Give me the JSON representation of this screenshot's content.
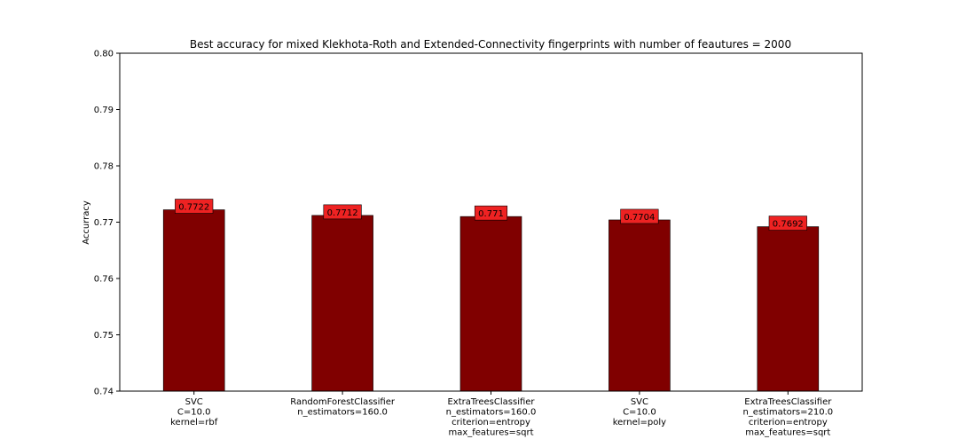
{
  "chart_data": {
    "type": "bar",
    "title": "Best accuracy for mixed Klekhota-Roth and Extended-Connectivity fingerprints with number of feautures = 2000",
    "xlabel": "",
    "ylabel": "Accurracy",
    "ylim": [
      0.74,
      0.8
    ],
    "yticks": [
      "0.74",
      "0.75",
      "0.76",
      "0.77",
      "0.78",
      "0.79",
      "0.80"
    ],
    "grid": false,
    "bar_color": "#800000",
    "label_box_color": "#ee2222",
    "categories": [
      [
        "SVC",
        "C=10.0",
        "kernel=rbf"
      ],
      [
        "RandomForestClassifier",
        "n_estimators=160.0"
      ],
      [
        "ExtraTreesClassifier",
        "n_estimators=160.0",
        "criterion=entropy",
        "max_features=sqrt"
      ],
      [
        "SVC",
        "C=10.0",
        "kernel=poly"
      ],
      [
        "ExtraTreesClassifier",
        "n_estimators=210.0",
        "criterion=entropy",
        "max_features=sqrt"
      ]
    ],
    "values": [
      0.7722,
      0.7712,
      0.771,
      0.7704,
      0.7692
    ],
    "data_labels": [
      "0.7722",
      "0.7712",
      "0.771",
      "0.7704",
      "0.7692"
    ]
  }
}
